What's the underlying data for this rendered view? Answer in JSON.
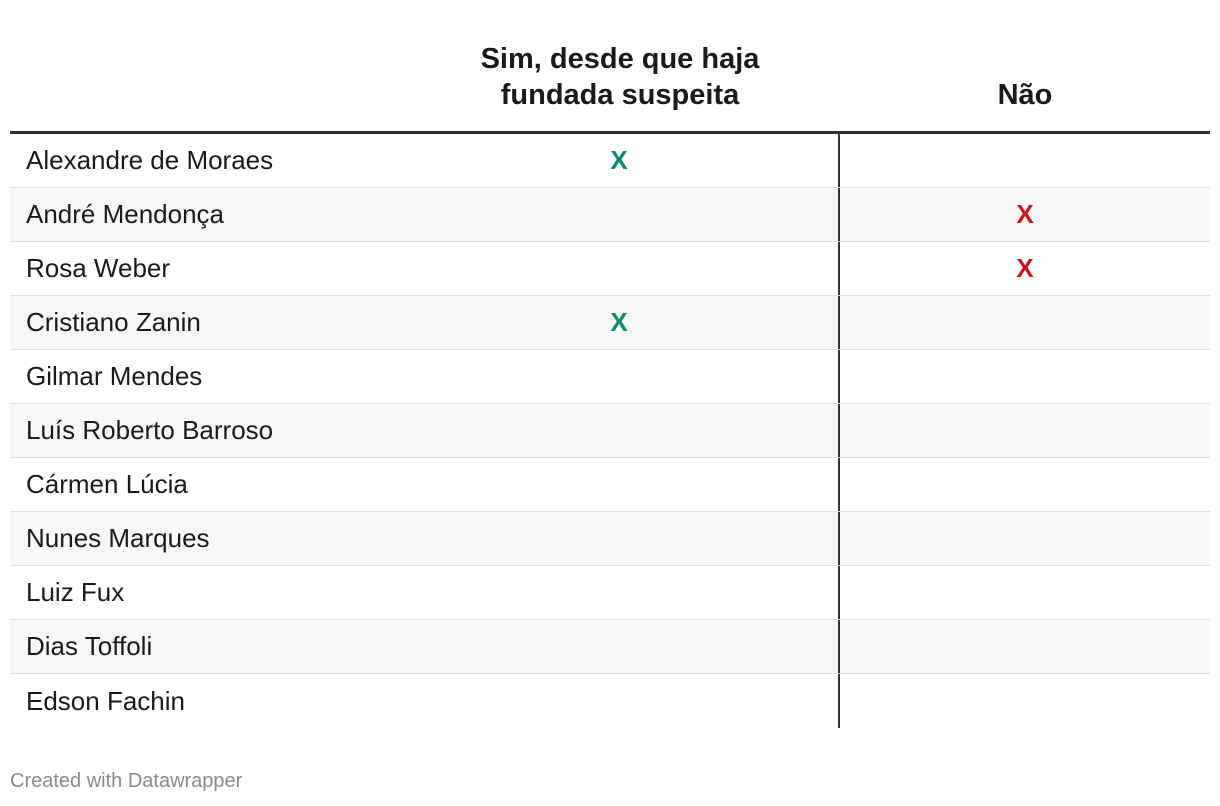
{
  "table": {
    "headers": {
      "name": "",
      "sim": "Sim, desde que haja fundada suspeita",
      "nao": "Não"
    },
    "rows": [
      {
        "name": "Alexandre de Moraes",
        "sim": "X",
        "nao": ""
      },
      {
        "name": "André Mendonça",
        "sim": "",
        "nao": "X"
      },
      {
        "name": "Rosa Weber",
        "sim": "",
        "nao": "X"
      },
      {
        "name": "Cristiano Zanin",
        "sim": "X",
        "nao": ""
      },
      {
        "name": "Gilmar Mendes",
        "sim": "",
        "nao": ""
      },
      {
        "name": "Luís Roberto Barroso",
        "sim": "",
        "nao": ""
      },
      {
        "name": "Cármen Lúcia",
        "sim": "",
        "nao": ""
      },
      {
        "name": "Nunes Marques",
        "sim": "",
        "nao": ""
      },
      {
        "name": "Luiz Fux",
        "sim": "",
        "nao": ""
      },
      {
        "name": "Dias Toffoli",
        "sim": "",
        "nao": ""
      },
      {
        "name": "Edson Fachin",
        "sim": "",
        "nao": ""
      }
    ]
  },
  "colors": {
    "sim_mark": "#0a8a6e",
    "nao_mark": "#c8161d",
    "header_rule": "#333333",
    "row_shade": "#f7f7f7"
  },
  "footer": {
    "credit": "Created with Datawrapper"
  }
}
